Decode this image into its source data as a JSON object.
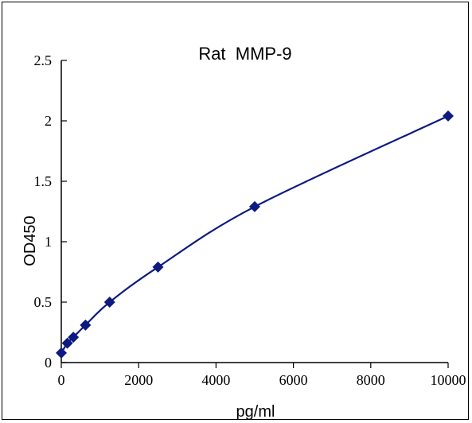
{
  "chart_data": {
    "type": "scatter",
    "title": "Rat  MMP-9",
    "xlabel": "pg/ml",
    "ylabel": "OD450",
    "xlim": [
      0,
      10000
    ],
    "ylim": [
      0,
      2.5
    ],
    "x_ticks": [
      0,
      2000,
      4000,
      6000,
      8000,
      10000
    ],
    "y_ticks": [
      0,
      0.5,
      1,
      1.5,
      2,
      2.5
    ],
    "x_tick_labels": [
      "0",
      "2000",
      "4000",
      "6000",
      "8000",
      "10000"
    ],
    "y_tick_labels": [
      "0",
      "0.5",
      "1",
      "1.5",
      "2",
      "2.5"
    ],
    "grid": false,
    "legend": "none",
    "series": [
      {
        "marker": "diamond",
        "color": "#0d1a80",
        "fit_line": "smooth",
        "points": [
          {
            "x": 0,
            "y": 0.08
          },
          {
            "x": 156,
            "y": 0.16
          },
          {
            "x": 312,
            "y": 0.21
          },
          {
            "x": 625,
            "y": 0.31
          },
          {
            "x": 1250,
            "y": 0.5
          },
          {
            "x": 2500,
            "y": 0.79
          },
          {
            "x": 5000,
            "y": 1.29
          },
          {
            "x": 10000,
            "y": 2.04
          }
        ]
      }
    ]
  }
}
